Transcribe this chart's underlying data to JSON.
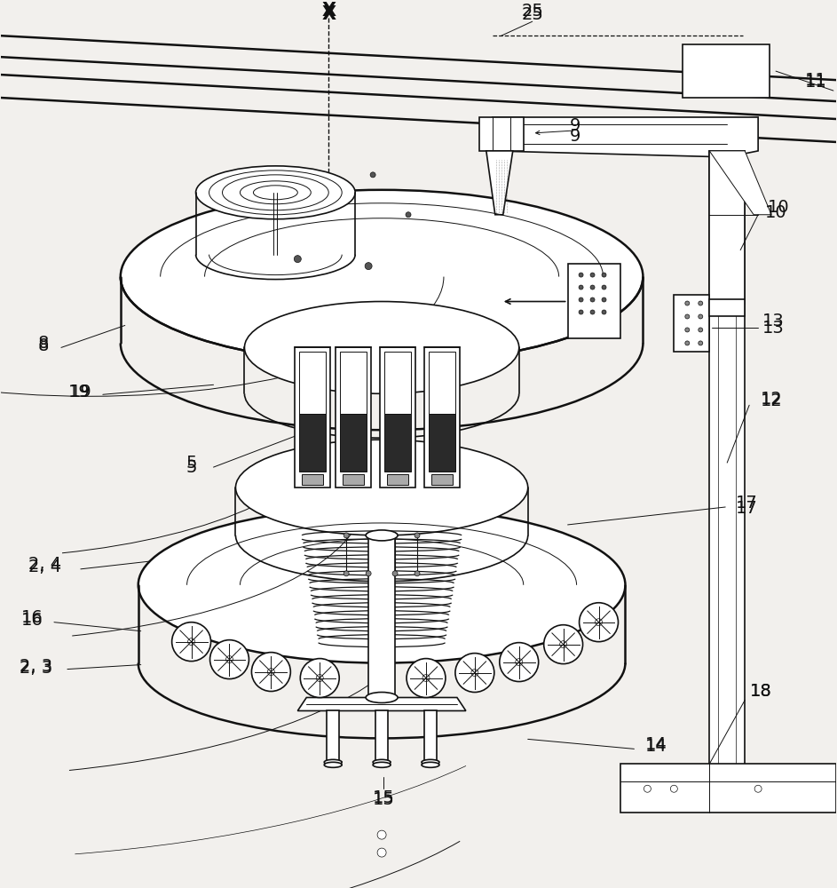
{
  "bg_color": "#f2f0ed",
  "line_color": "#111111",
  "lw_thick": 1.8,
  "lw_main": 1.2,
  "lw_thin": 0.7,
  "lw_very_thin": 0.5,
  "conveyor_lines": [
    [
      [
        0,
        38
      ],
      [
        943,
        88
      ]
    ],
    [
      [
        0,
        62
      ],
      [
        943,
        112
      ]
    ],
    [
      [
        0,
        82
      ],
      [
        943,
        132
      ]
    ],
    [
      [
        0,
        108
      ],
      [
        943,
        158
      ]
    ]
  ],
  "labels": [
    [
      "X",
      370,
      14,
      "bold",
      15
    ],
    [
      "25",
      600,
      14,
      "normal",
      14
    ],
    [
      "11",
      920,
      88,
      "normal",
      14
    ],
    [
      "9",
      648,
      152,
      "normal",
      14
    ],
    [
      "10",
      875,
      238,
      "normal",
      14
    ],
    [
      "13",
      872,
      368,
      "normal",
      14
    ],
    [
      "12",
      870,
      450,
      "normal",
      14
    ],
    [
      "8",
      48,
      388,
      "normal",
      14
    ],
    [
      "19",
      88,
      440,
      "normal",
      14
    ],
    [
      "5",
      215,
      525,
      "normal",
      14
    ],
    [
      "17",
      842,
      572,
      "normal",
      14
    ],
    [
      "2, 4",
      50,
      638,
      "normal",
      14
    ],
    [
      "16",
      35,
      698,
      "normal",
      14
    ],
    [
      "2, 3",
      40,
      752,
      "normal",
      14
    ],
    [
      "18",
      858,
      778,
      "normal",
      14
    ],
    [
      "14",
      740,
      840,
      "normal",
      14
    ],
    [
      "15",
      432,
      900,
      "normal",
      14
    ]
  ]
}
